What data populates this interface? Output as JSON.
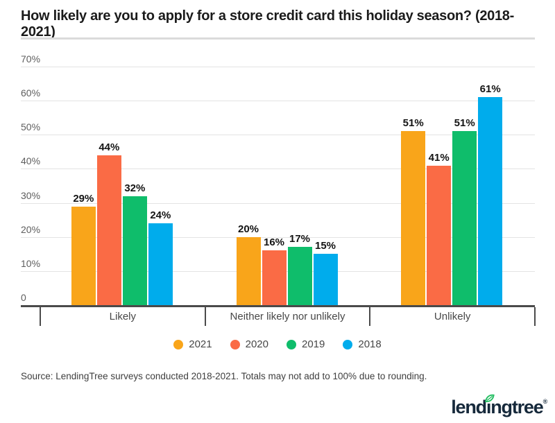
{
  "title": "How likely are you to apply for a store credit card this holiday season? (2018-2021)",
  "chart_data": {
    "type": "bar",
    "title": "How likely are you to apply for a store credit card this holiday season? (2018-2021)",
    "categories": [
      "Likely",
      "Neither likely nor unlikely",
      "Unlikely"
    ],
    "series": [
      {
        "name": "2021",
        "color": "#F9A51A",
        "values": [
          29,
          20,
          51
        ]
      },
      {
        "name": "2020",
        "color": "#FA6B45",
        "values": [
          44,
          16,
          41
        ]
      },
      {
        "name": "2019",
        "color": "#0FBD6B",
        "values": [
          32,
          17,
          51
        ]
      },
      {
        "name": "2018",
        "color": "#00ACEC",
        "values": [
          24,
          15,
          61
        ]
      }
    ],
    "value_suffix": "%",
    "xlabel": "",
    "ylabel": "",
    "ylim": [
      0,
      70
    ],
    "yticks": [
      {
        "value": 70,
        "label": "70%"
      },
      {
        "value": 60,
        "label": "60%"
      },
      {
        "value": 50,
        "label": "50%"
      },
      {
        "value": 40,
        "label": "40%"
      },
      {
        "value": 30,
        "label": "30%"
      },
      {
        "value": 20,
        "label": "20%"
      },
      {
        "value": 10,
        "label": "10%"
      },
      {
        "value": 0,
        "label": "0"
      }
    ],
    "grid": "horizontal",
    "legend_position": "bottom"
  },
  "source": "Source: LendingTree surveys conducted 2018-2021. Totals may not add to 100% due to rounding.",
  "logo": {
    "brand": "lendingtree",
    "lend": "lend",
    "i": "ı",
    "ngtree": "ngtree",
    "registered": "®",
    "wordmark_color": "#16293B",
    "leaf_color": "#23BE61"
  },
  "colors": {
    "background": "#FFFFFF",
    "axis_line": "#4A4A4A",
    "gridline": "#E3E3E3",
    "y_tick_label": "#5E5E5E",
    "category_label": "#474747",
    "value_label": "#141414",
    "title_text": "#1B1B1B",
    "divider": "#DBDBDB",
    "source_text": "#3E3E3E",
    "legend_text": "#474747"
  }
}
